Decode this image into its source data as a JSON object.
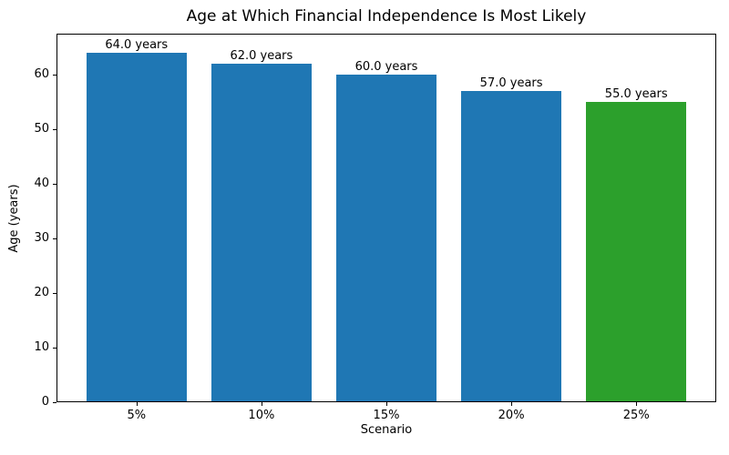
{
  "chart_data": {
    "type": "bar",
    "title": "Age at Which Financial Independence Is Most Likely",
    "xlabel": "Scenario",
    "ylabel": "Age (years)",
    "categories": [
      "5%",
      "10%",
      "15%",
      "20%",
      "25%"
    ],
    "values": [
      64.0,
      62.0,
      60.0,
      57.0,
      55.0
    ],
    "bar_labels": [
      "64.0 years",
      "62.0 years",
      "60.0 years",
      "57.0 years",
      "55.0 years"
    ],
    "bar_colors": [
      "#1f77b4",
      "#1f77b4",
      "#1f77b4",
      "#1f77b4",
      "#2ca02c"
    ],
    "default_bar_color": "#1f77b4",
    "highlight_bar_color": "#2ca02c",
    "yticks": [
      0,
      10,
      20,
      30,
      40,
      50,
      60
    ],
    "ytick_labels": [
      "0",
      "10",
      "20",
      "30",
      "40",
      "50",
      "60"
    ],
    "ylim": [
      0,
      67.5
    ],
    "xlim": [
      -0.64,
      4.64
    ],
    "bar_width": 0.8,
    "grid": false,
    "legend_position": "none"
  }
}
